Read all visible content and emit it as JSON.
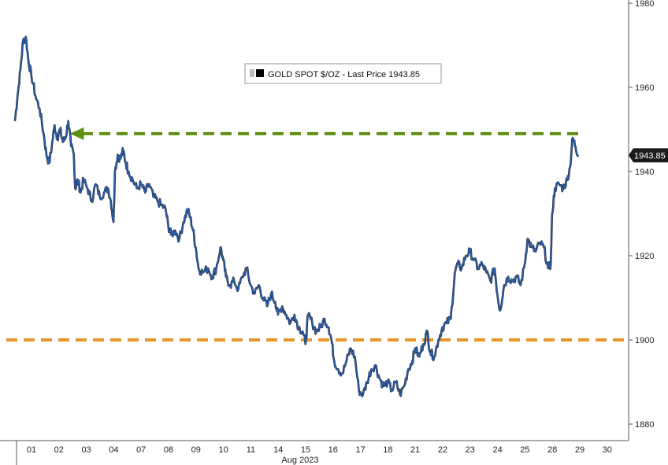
{
  "chart_data": {
    "type": "line",
    "legend": {
      "label": "GOLD SPOT $/OZ - Last Price 1943.85",
      "placement": "top-center"
    },
    "last_price_label": "1943.85",
    "ylim": [
      1876,
      1980
    ],
    "yticks": [
      1880,
      1900,
      1920,
      1940,
      1960,
      1980
    ],
    "ytick_labels": [
      "1880",
      "1900",
      "1920",
      "1940",
      "1960",
      "1980"
    ],
    "xticks": [
      "01",
      "02",
      "03",
      "04",
      "07",
      "08",
      "09",
      "10",
      "11",
      "14",
      "15",
      "16",
      "17",
      "18",
      "21",
      "22",
      "23",
      "24",
      "25",
      "28",
      "29",
      "30"
    ],
    "x_month_label": "Aug 2023",
    "grid": true,
    "series": [
      {
        "color": "#2e5fa8",
        "points": [
          [
            -0.55,
            1952
          ],
          [
            -0.45,
            1958
          ],
          [
            -0.35,
            1964
          ],
          [
            -0.25,
            1971
          ],
          [
            -0.15,
            1972
          ],
          [
            -0.05,
            1966
          ],
          [
            0.05,
            1963
          ],
          [
            0.2,
            1958
          ],
          [
            0.35,
            1955
          ],
          [
            0.5,
            1949
          ],
          [
            0.6,
            1944
          ],
          [
            0.7,
            1942
          ],
          [
            0.8,
            1946
          ],
          [
            0.9,
            1951
          ],
          [
            1.0,
            1948
          ],
          [
            1.1,
            1950
          ],
          [
            1.2,
            1947
          ],
          [
            1.3,
            1948
          ],
          [
            1.4,
            1952
          ],
          [
            1.5,
            1946
          ],
          [
            1.6,
            1944
          ],
          [
            1.65,
            1936
          ],
          [
            1.75,
            1938
          ],
          [
            1.85,
            1935
          ],
          [
            1.95,
            1938
          ],
          [
            2.1,
            1936
          ],
          [
            2.25,
            1933
          ],
          [
            2.4,
            1937
          ],
          [
            2.55,
            1934
          ],
          [
            2.7,
            1935
          ],
          [
            2.85,
            1936
          ],
          [
            2.95,
            1933
          ],
          [
            3.05,
            1928
          ],
          [
            3.1,
            1940
          ],
          [
            3.2,
            1944
          ],
          [
            3.3,
            1943
          ],
          [
            3.4,
            1945
          ],
          [
            3.5,
            1942
          ],
          [
            3.6,
            1940
          ],
          [
            3.75,
            1938
          ],
          [
            3.9,
            1936
          ],
          [
            4.05,
            1937
          ],
          [
            4.2,
            1935
          ],
          [
            4.35,
            1937
          ],
          [
            4.5,
            1934
          ],
          [
            4.65,
            1933
          ],
          [
            4.8,
            1932
          ],
          [
            4.95,
            1931
          ],
          [
            5.05,
            1927
          ],
          [
            5.15,
            1925
          ],
          [
            5.3,
            1926
          ],
          [
            5.45,
            1924
          ],
          [
            5.6,
            1928
          ],
          [
            5.75,
            1931
          ],
          [
            5.85,
            1929
          ],
          [
            5.95,
            1926
          ],
          [
            6.05,
            1922
          ],
          [
            6.15,
            1917
          ],
          [
            6.3,
            1916
          ],
          [
            6.5,
            1917
          ],
          [
            6.65,
            1915
          ],
          [
            6.8,
            1917
          ],
          [
            6.95,
            1922
          ],
          [
            7.05,
            1919
          ],
          [
            7.15,
            1915
          ],
          [
            7.3,
            1913
          ],
          [
            7.45,
            1914
          ],
          [
            7.6,
            1912
          ],
          [
            7.75,
            1915
          ],
          [
            7.9,
            1917
          ],
          [
            8.05,
            1913
          ],
          [
            8.2,
            1911
          ],
          [
            8.35,
            1913
          ],
          [
            8.5,
            1910
          ],
          [
            8.65,
            1908
          ],
          [
            8.8,
            1911
          ],
          [
            8.95,
            1909
          ],
          [
            9.05,
            1906
          ],
          [
            9.2,
            1908
          ],
          [
            9.35,
            1906
          ],
          [
            9.5,
            1904
          ],
          [
            9.65,
            1906
          ],
          [
            9.8,
            1903
          ],
          [
            9.95,
            1902
          ],
          [
            10.05,
            1899
          ],
          [
            10.15,
            1906
          ],
          [
            10.3,
            1904
          ],
          [
            10.45,
            1902
          ],
          [
            10.6,
            1903
          ],
          [
            10.75,
            1905
          ],
          [
            10.9,
            1903
          ],
          [
            11.0,
            1900
          ],
          [
            11.1,
            1895
          ],
          [
            11.25,
            1893
          ],
          [
            11.4,
            1892
          ],
          [
            11.55,
            1895
          ],
          [
            11.7,
            1898
          ],
          [
            11.85,
            1896
          ],
          [
            12.0,
            1888
          ],
          [
            12.15,
            1887
          ],
          [
            12.3,
            1890
          ],
          [
            12.45,
            1893
          ],
          [
            12.6,
            1894
          ],
          [
            12.75,
            1891
          ],
          [
            12.9,
            1889
          ],
          [
            13.05,
            1890
          ],
          [
            13.2,
            1888
          ],
          [
            13.35,
            1890
          ],
          [
            13.5,
            1887
          ],
          [
            13.65,
            1889
          ],
          [
            13.8,
            1893
          ],
          [
            13.95,
            1895
          ],
          [
            14.05,
            1898
          ],
          [
            14.2,
            1896
          ],
          [
            14.35,
            1899
          ],
          [
            14.5,
            1902
          ],
          [
            14.6,
            1897
          ],
          [
            14.75,
            1896
          ],
          [
            14.9,
            1900
          ],
          [
            15.05,
            1903
          ],
          [
            15.2,
            1904
          ],
          [
            15.35,
            1905
          ],
          [
            15.5,
            1916
          ],
          [
            15.6,
            1918
          ],
          [
            15.75,
            1917
          ],
          [
            15.9,
            1920
          ],
          [
            16.05,
            1921
          ],
          [
            16.2,
            1919
          ],
          [
            16.35,
            1917
          ],
          [
            16.5,
            1918
          ],
          [
            16.65,
            1916
          ],
          [
            16.8,
            1914
          ],
          [
            16.95,
            1917
          ],
          [
            17.05,
            1911
          ],
          [
            17.15,
            1907
          ],
          [
            17.3,
            1913
          ],
          [
            17.45,
            1915
          ],
          [
            17.6,
            1914
          ],
          [
            17.75,
            1915
          ],
          [
            17.9,
            1913
          ],
          [
            18.05,
            1918
          ],
          [
            18.15,
            1924
          ],
          [
            18.3,
            1922
          ],
          [
            18.45,
            1921
          ],
          [
            18.6,
            1923
          ],
          [
            18.75,
            1922
          ],
          [
            18.9,
            1917
          ],
          [
            19.0,
            1918
          ],
          [
            19.05,
            1930
          ],
          [
            19.15,
            1936
          ],
          [
            19.3,
            1937
          ],
          [
            19.45,
            1936
          ],
          [
            19.6,
            1938
          ],
          [
            19.7,
            1941
          ],
          [
            19.8,
            1948
          ],
          [
            19.9,
            1946
          ],
          [
            20.0,
            1944
          ]
        ]
      }
    ],
    "annotations": [
      {
        "type": "dashed_line_arrow",
        "color": "#5f8f12",
        "y": 1949,
        "x_from": 20.0,
        "x_to": 1.45
      },
      {
        "type": "dashed_line",
        "color": "#e8962b",
        "y": 1900
      }
    ]
  }
}
